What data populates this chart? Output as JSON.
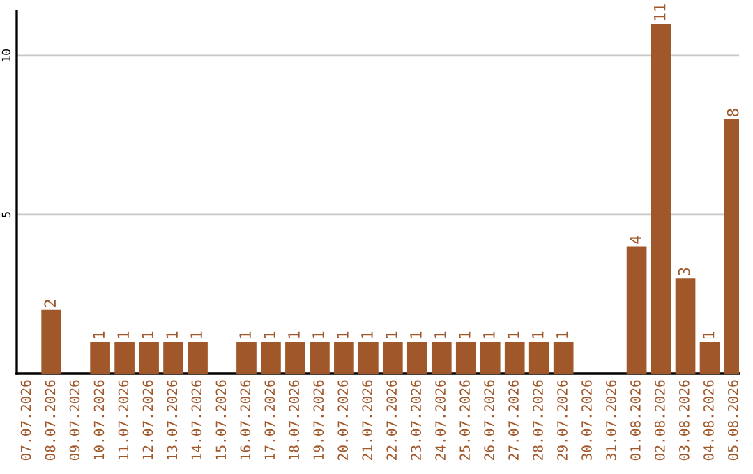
{
  "chart_data": {
    "type": "bar",
    "categories": [
      "07.07.2026",
      "08.07.2026",
      "09.07.2026",
      "10.07.2026",
      "11.07.2026",
      "12.07.2026",
      "13.07.2026",
      "14.07.2026",
      "15.07.2026",
      "16.07.2026",
      "17.07.2026",
      "18.07.2026",
      "19.07.2026",
      "20.07.2026",
      "21.07.2026",
      "22.07.2026",
      "23.07.2026",
      "24.07.2026",
      "25.07.2026",
      "26.07.2026",
      "27.07.2026",
      "28.07.2026",
      "29.07.2026",
      "30.07.2026",
      "31.07.2026",
      "01.08.2026",
      "02.08.2026",
      "03.08.2026",
      "04.08.2026",
      "05.08.2026"
    ],
    "values": [
      0,
      2,
      0,
      1,
      1,
      1,
      1,
      1,
      0,
      1,
      1,
      1,
      1,
      1,
      1,
      1,
      1,
      1,
      1,
      1,
      1,
      1,
      1,
      0,
      0,
      4,
      11,
      3,
      1,
      8
    ],
    "value_labels": [
      null,
      "2",
      null,
      "1",
      "1",
      "1",
      "1",
      "1",
      null,
      "1",
      "1",
      "1",
      "1",
      "1",
      "1",
      "1",
      "1",
      "1",
      "1",
      "1",
      "1",
      "1",
      "1",
      null,
      null,
      "4",
      "11",
      "3",
      "1",
      "8"
    ],
    "color": "#a0582a",
    "ylim": [
      0,
      11.4
    ],
    "yticks": [
      5,
      10
    ],
    "grid": "y"
  }
}
